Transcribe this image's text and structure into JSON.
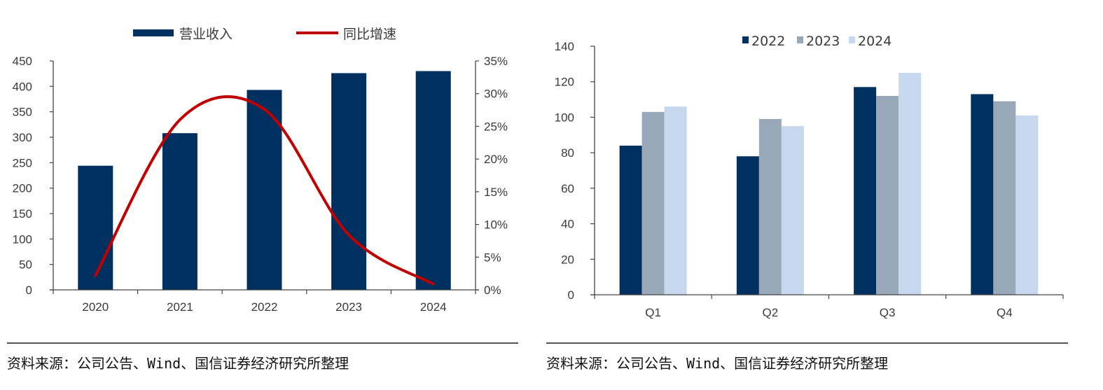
{
  "chart_data": [
    {
      "type": "bar+line",
      "title": "",
      "categories": [
        "2020",
        "2021",
        "2022",
        "2023",
        "2024"
      ],
      "series": [
        {
          "name": "营业收入",
          "type": "bar",
          "axis": "left",
          "color": "#00305f",
          "values": [
            244,
            308,
            393,
            426,
            430
          ]
        },
        {
          "name": "同比增速",
          "type": "line",
          "axis": "right",
          "smooth": true,
          "color": "#c00000",
          "values": [
            2.2,
            26.0,
            27.6,
            8.4,
            0.9
          ]
        }
      ],
      "left_axis": {
        "ylim": [
          0,
          450
        ],
        "ticks": [
          "0",
          "50",
          "100",
          "150",
          "200",
          "250",
          "300",
          "350",
          "400",
          "450"
        ]
      },
      "right_axis": {
        "ylim": [
          0,
          35
        ],
        "ticks": [
          "0%",
          "5%",
          "10%",
          "15%",
          "20%",
          "25%",
          "30%",
          "35%"
        ]
      },
      "legend": {
        "placement": "top",
        "items": [
          "营业收入",
          "同比增速"
        ]
      },
      "grid": false,
      "source": "资料来源：公司公告、Wind、国信证券经济研究所整理"
    },
    {
      "type": "bar",
      "title": "",
      "categories": [
        "Q1",
        "Q2",
        "Q3",
        "Q4"
      ],
      "series": [
        {
          "name": "2022",
          "color": "#00305f",
          "values": [
            84,
            78,
            117,
            113
          ]
        },
        {
          "name": "2023",
          "color": "#98a8b8",
          "values": [
            103,
            99,
            112,
            109
          ]
        },
        {
          "name": "2024",
          "color": "#c7d7ee",
          "values": [
            106,
            95,
            125,
            101
          ]
        }
      ],
      "ylim": [
        0,
        140
      ],
      "ticks": [
        "0",
        "20",
        "40",
        "60",
        "80",
        "100",
        "120",
        "140"
      ],
      "legend": {
        "placement": "top",
        "items": [
          "2022",
          "2023",
          "2024"
        ]
      },
      "grid": false,
      "source": "资料来源：公司公告、Wind、国信证券经济研究所整理"
    }
  ]
}
